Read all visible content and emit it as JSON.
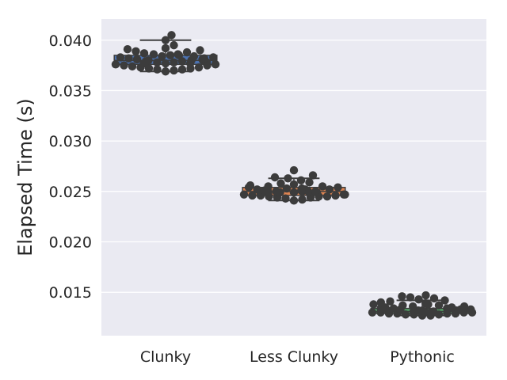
{
  "chart_data": {
    "type": "box",
    "title": "",
    "xlabel": "",
    "ylabel": "Elapsed Time (s)",
    "ylim": [
      0.0107,
      0.0421
    ],
    "yticks": [
      "0.015",
      "0.020",
      "0.025",
      "0.030",
      "0.035",
      "0.040"
    ],
    "grid": true,
    "categories": [
      "Clunky",
      "Less Clunky",
      "Pythonic"
    ],
    "series": [
      {
        "category": "Clunky",
        "color": "#4c72b0",
        "box": {
          "whisker_low": 0.0369,
          "q1": 0.0376,
          "median": 0.038,
          "q3": 0.0385,
          "whisker_high": 0.04
        },
        "points": [
          0.0369,
          0.037,
          0.0371,
          0.0371,
          0.0372,
          0.0372,
          0.0373,
          0.0373,
          0.0374,
          0.0375,
          0.0375,
          0.0376,
          0.0376,
          0.0377,
          0.0377,
          0.0377,
          0.0378,
          0.0378,
          0.0378,
          0.0379,
          0.0379,
          0.038,
          0.038,
          0.038,
          0.0381,
          0.0381,
          0.0382,
          0.0382,
          0.0383,
          0.0383,
          0.0384,
          0.0384,
          0.0385,
          0.0385,
          0.0386,
          0.0386,
          0.0387,
          0.0388,
          0.0389,
          0.039,
          0.0391,
          0.0392,
          0.0395,
          0.04,
          0.0405
        ]
      },
      {
        "category": "Less Clunky",
        "color": "#dd8452",
        "box": {
          "whisker_low": 0.0241,
          "q1": 0.0246,
          "median": 0.025,
          "q3": 0.0254,
          "whisker_high": 0.0263
        },
        "points": [
          0.0241,
          0.0242,
          0.0243,
          0.0244,
          0.0244,
          0.0245,
          0.0245,
          0.0245,
          0.0246,
          0.0246,
          0.0246,
          0.0247,
          0.0247,
          0.0247,
          0.0248,
          0.0248,
          0.0248,
          0.0249,
          0.0249,
          0.0249,
          0.025,
          0.025,
          0.025,
          0.025,
          0.0251,
          0.0251,
          0.0251,
          0.0252,
          0.0252,
          0.0252,
          0.0253,
          0.0253,
          0.0254,
          0.0254,
          0.0255,
          0.0255,
          0.0256,
          0.0257,
          0.0258,
          0.0259,
          0.0261,
          0.0263,
          0.0264,
          0.0266,
          0.0271
        ]
      },
      {
        "category": "Pythonic",
        "color": "#55a868",
        "box": {
          "whisker_low": 0.0127,
          "q1": 0.0129,
          "median": 0.0131,
          "q3": 0.0134,
          "whisker_high": 0.0142
        },
        "points": [
          0.0127,
          0.0127,
          0.0128,
          0.0128,
          0.0128,
          0.0129,
          0.0129,
          0.0129,
          0.0129,
          0.013,
          0.013,
          0.013,
          0.013,
          0.013,
          0.0131,
          0.0131,
          0.0131,
          0.0131,
          0.0131,
          0.0132,
          0.0132,
          0.0132,
          0.0132,
          0.0133,
          0.0133,
          0.0133,
          0.0134,
          0.0134,
          0.0134,
          0.0135,
          0.0135,
          0.0136,
          0.0136,
          0.0137,
          0.0137,
          0.0138,
          0.0138,
          0.0139,
          0.014,
          0.0141,
          0.0142,
          0.0143,
          0.0144,
          0.0145,
          0.0146,
          0.0147
        ]
      }
    ]
  }
}
